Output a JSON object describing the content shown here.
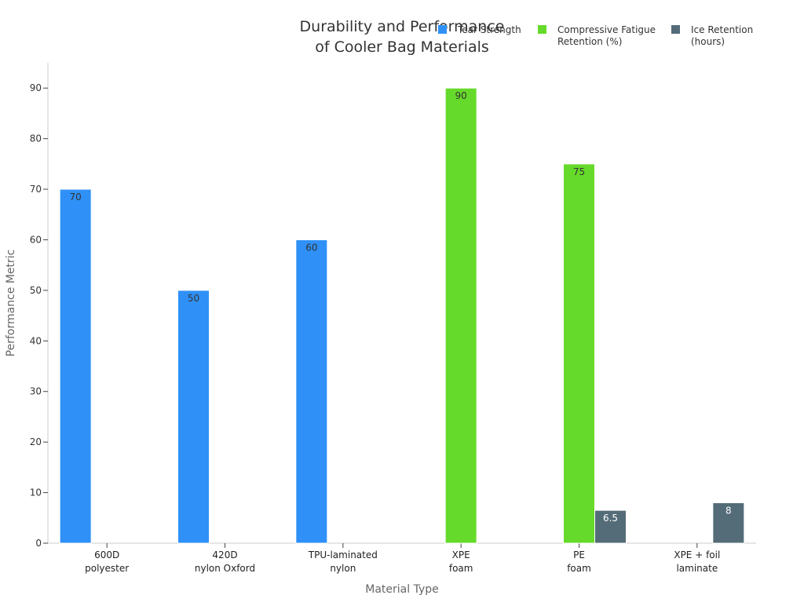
{
  "chart_data": {
    "type": "bar",
    "title": "Durability and Performance of Cooler Bag Materials",
    "title_lines": [
      "Durability and Performance",
      "of Cooler Bag Materials"
    ],
    "xlabel": "Material Type",
    "ylabel": "Performance Metric",
    "ylim": [
      0,
      95
    ],
    "yticks": [
      0,
      10,
      20,
      30,
      40,
      50,
      60,
      70,
      80,
      90
    ],
    "grid": false,
    "legend_position": "top-right",
    "categories": [
      [
        "600D",
        "polyester"
      ],
      [
        "420D",
        "nylon Oxford"
      ],
      [
        "TPU-laminated",
        "nylon"
      ],
      [
        "XPE",
        "foam"
      ],
      [
        "PE",
        "foam"
      ],
      [
        "XPE + foil",
        "laminate"
      ]
    ],
    "series": [
      {
        "name": "Tear Strength",
        "legend_lines": [
          "Tear Strength"
        ],
        "color": "#2f91f7",
        "values": [
          70,
          50,
          60,
          null,
          null,
          null
        ]
      },
      {
        "name": "Compressive Fatigue Retention (%)",
        "legend_lines": [
          "Compressive Fatigue",
          "Retention (%)"
        ],
        "color": "#66da2a",
        "values": [
          null,
          null,
          null,
          90,
          75,
          null
        ]
      },
      {
        "name": "Ice Retention (hours)",
        "legend_lines": [
          "Ice Retention",
          "(hours)"
        ],
        "color": "#546c78",
        "values": [
          null,
          null,
          null,
          null,
          6.5,
          8
        ]
      }
    ]
  }
}
